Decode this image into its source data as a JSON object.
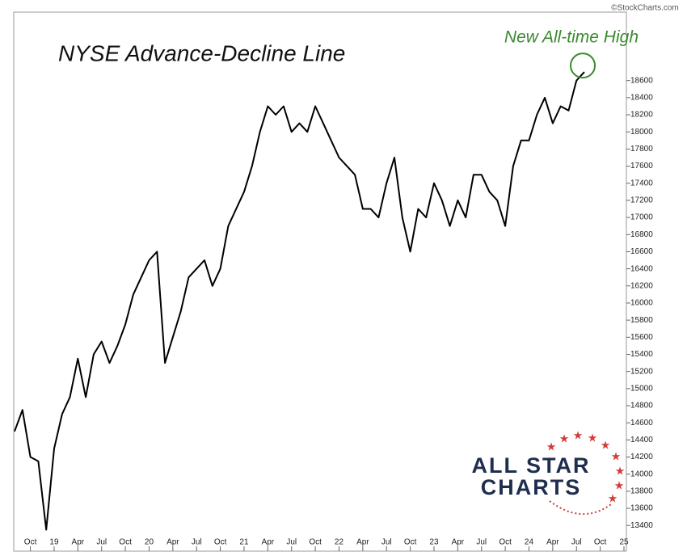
{
  "chart_data": {
    "type": "line",
    "title": "NYSE Advance-Decline Line",
    "annotation": "New All-time High",
    "annotation_color": "#3a8a2e",
    "watermark": "©StockCharts.com",
    "logo": [
      "ALL STAR",
      "CHARTS"
    ],
    "color": "#000000",
    "x": [
      "2018-08",
      "2018-09",
      "2018-10",
      "2018-11",
      "2018-12",
      "2019-01",
      "2019-02",
      "2019-03",
      "2019-04",
      "2019-05",
      "2019-06",
      "2019-07",
      "2019-08",
      "2019-09",
      "2019-10",
      "2019-11",
      "2019-12",
      "2020-01",
      "2020-02",
      "2020-03",
      "2020-04",
      "2020-05",
      "2020-06",
      "2020-07",
      "2020-08",
      "2020-09",
      "2020-10",
      "2020-11",
      "2020-12",
      "2021-01",
      "2021-02",
      "2021-03",
      "2021-04",
      "2021-05",
      "2021-06",
      "2021-07",
      "2021-08",
      "2021-09",
      "2021-10",
      "2021-11",
      "2021-12",
      "2022-01",
      "2022-02",
      "2022-03",
      "2022-04",
      "2022-05",
      "2022-06",
      "2022-07",
      "2022-08",
      "2022-09",
      "2022-10",
      "2022-11",
      "2022-12",
      "2023-01",
      "2023-02",
      "2023-03",
      "2023-04",
      "2023-05",
      "2023-06",
      "2023-07",
      "2023-08",
      "2023-09",
      "2023-10",
      "2023-11",
      "2023-12",
      "2024-01",
      "2024-02",
      "2024-03",
      "2024-04",
      "2024-05",
      "2024-06",
      "2024-07",
      "2024-08"
    ],
    "values": [
      14500,
      14750,
      14200,
      14150,
      13350,
      14300,
      14700,
      14900,
      15350,
      14900,
      15400,
      15550,
      15300,
      15500,
      15750,
      16100,
      16300,
      16500,
      16600,
      15300,
      15600,
      15900,
      16300,
      16400,
      16500,
      16200,
      16400,
      16900,
      17100,
      17300,
      17600,
      18000,
      18300,
      18200,
      18300,
      18000,
      18100,
      18000,
      18300,
      18100,
      17900,
      17700,
      17600,
      17500,
      17100,
      17100,
      17000,
      17400,
      17700,
      17000,
      16600,
      17100,
      17000,
      17400,
      17200,
      16900,
      17200,
      17000,
      17500,
      17500,
      17300,
      17200,
      16900,
      17600,
      17900,
      17900,
      18200,
      18400,
      18100,
      18300,
      18250,
      18600,
      18700
    ],
    "xlim": [
      "2018-08",
      "2025-01"
    ],
    "xticks": [
      {
        "value": "2018-10",
        "label": "Oct"
      },
      {
        "value": "2019-01",
        "label": "19"
      },
      {
        "value": "2019-04",
        "label": "Apr"
      },
      {
        "value": "2019-07",
        "label": "Jul"
      },
      {
        "value": "2019-10",
        "label": "Oct"
      },
      {
        "value": "2020-01",
        "label": "20"
      },
      {
        "value": "2020-04",
        "label": "Apr"
      },
      {
        "value": "2020-07",
        "label": "Jul"
      },
      {
        "value": "2020-10",
        "label": "Oct"
      },
      {
        "value": "2021-01",
        "label": "21"
      },
      {
        "value": "2021-04",
        "label": "Apr"
      },
      {
        "value": "2021-07",
        "label": "Jul"
      },
      {
        "value": "2021-10",
        "label": "Oct"
      },
      {
        "value": "2022-01",
        "label": "22"
      },
      {
        "value": "2022-04",
        "label": "Apr"
      },
      {
        "value": "2022-07",
        "label": "Jul"
      },
      {
        "value": "2022-10",
        "label": "Oct"
      },
      {
        "value": "2023-01",
        "label": "23"
      },
      {
        "value": "2023-04",
        "label": "Apr"
      },
      {
        "value": "2023-07",
        "label": "Jul"
      },
      {
        "value": "2023-10",
        "label": "Oct"
      },
      {
        "value": "2024-01",
        "label": "24"
      },
      {
        "value": "2024-04",
        "label": "Apr"
      },
      {
        "value": "2024-07",
        "label": "Jul"
      },
      {
        "value": "2024-10",
        "label": "Oct"
      },
      {
        "value": "2025-01",
        "label": "25"
      }
    ],
    "ylim": [
      13100,
      19400
    ],
    "yticks": [
      13400,
      13600,
      13800,
      14000,
      14200,
      14400,
      14600,
      14800,
      15000,
      15200,
      15400,
      15600,
      15800,
      16000,
      16200,
      16400,
      16600,
      16800,
      17000,
      17200,
      17400,
      17600,
      17800,
      18000,
      18200,
      18400,
      18600
    ]
  }
}
